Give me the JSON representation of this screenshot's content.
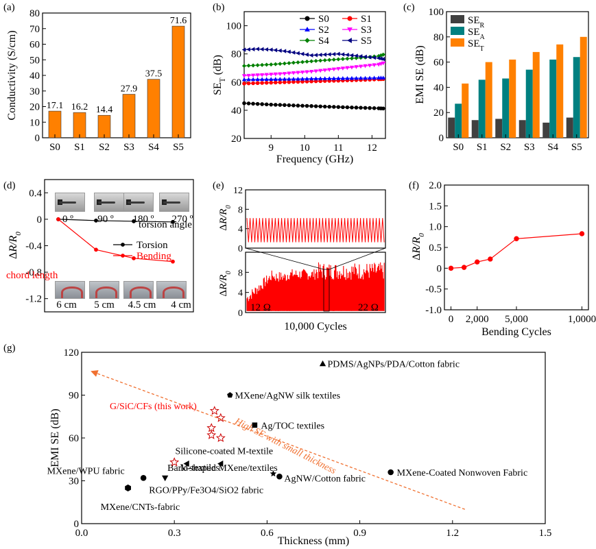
{
  "chart_data": [
    {
      "panel": "(a)",
      "type": "bar",
      "categories": [
        "S0",
        "S1",
        "S2",
        "S3",
        "S4",
        "S5"
      ],
      "values": [
        17.1,
        16.2,
        14.4,
        27.9,
        37.5,
        71.6
      ],
      "value_labels": [
        "17.1",
        "16.2",
        "14.4",
        "27.9",
        "37.5",
        "71.6"
      ],
      "ylabel": "Conductivity (S/cm)",
      "ylim": [
        0,
        80
      ],
      "yticks": [
        "0",
        "10",
        "20",
        "30",
        "40",
        "50",
        "60",
        "70",
        "80"
      ],
      "color": "#ff8000"
    },
    {
      "panel": "(b)",
      "type": "line",
      "xlabel": "Frequency (GHz)",
      "ylabel_main": "SE",
      "ylabel_sub": "T",
      "ylabel_unit": " (dB)",
      "xlim": [
        8.2,
        12.4
      ],
      "ylim": [
        20,
        110
      ],
      "xticks": [
        "9",
        "10",
        "11",
        "12"
      ],
      "yticks": [
        "20",
        "40",
        "60",
        "80",
        "100"
      ],
      "x": [
        8.2,
        8.6,
        9.0,
        9.4,
        9.8,
        10.2,
        10.6,
        11.0,
        11.4,
        11.8,
        12.2,
        12.4
      ],
      "series": [
        {
          "name": "S0",
          "color": "#000000",
          "marker": "circle",
          "values": [
            45,
            44.5,
            44,
            43.7,
            43.3,
            43,
            42.6,
            42.3,
            42,
            41.7,
            41.4,
            41.2
          ]
        },
        {
          "name": "S1",
          "color": "#ff0000",
          "marker": "circle",
          "values": [
            59,
            59.3,
            59.6,
            59.9,
            60.2,
            60.5,
            60.8,
            61,
            61.3,
            61.6,
            62,
            62.2
          ]
        },
        {
          "name": "S2",
          "color": "#0000ff",
          "marker": "triangle",
          "values": [
            61.8,
            61.9,
            62,
            62.1,
            62.2,
            62.4,
            62.5,
            62.6,
            62.7,
            62.8,
            63,
            63
          ]
        },
        {
          "name": "S3",
          "color": "#ff00ff",
          "marker": "triangle-down",
          "values": [
            64.5,
            65,
            65.5,
            66,
            66.8,
            67.5,
            68.5,
            69.5,
            70.5,
            71.5,
            72.5,
            74
          ]
        },
        {
          "name": "S4",
          "color": "#008000",
          "marker": "diamond",
          "values": [
            71.5,
            72,
            72.5,
            73.2,
            74,
            74.8,
            75.5,
            76.2,
            76.8,
            77.5,
            78.5,
            80
          ]
        },
        {
          "name": "S5",
          "color": "#000080",
          "marker": "left-triangle",
          "values": [
            83,
            83.5,
            83,
            82,
            80.5,
            79,
            79.5,
            80,
            79,
            78,
            77,
            76
          ]
        }
      ]
    },
    {
      "panel": "(c)",
      "type": "bar",
      "categories": [
        "S0",
        "S1",
        "S2",
        "S3",
        "S4",
        "S5"
      ],
      "ylabel": "EMI SE (dB)",
      "ylim": [
        0,
        100
      ],
      "yticks": [
        "0",
        "20",
        "40",
        "60",
        "80",
        "100"
      ],
      "series": [
        {
          "name": "SE",
          "sub": "R",
          "color": "#404040",
          "values": [
            16,
            14,
            15,
            14,
            12,
            16
          ]
        },
        {
          "name": "SE",
          "sub": "A",
          "color": "#008080",
          "values": [
            27,
            46,
            47,
            54,
            62,
            64
          ]
        },
        {
          "name": "SE",
          "sub": "T",
          "color": "#ff8000",
          "values": [
            43,
            60,
            62,
            68,
            74,
            80
          ]
        }
      ]
    },
    {
      "panel": "(d)",
      "type": "line",
      "ylabel": "ΔR/R",
      "ylabel_sub": "0",
      "ylim": [
        -1.4,
        0.6
      ],
      "yticks": [
        "0.4",
        "0",
        "-0.4",
        "-0.8",
        "-1.2"
      ],
      "ytick_values": [
        0.4,
        0,
        -0.4,
        -0.8,
        -1.2
      ],
      "top_labels": [
        "0 º",
        "90 º",
        "180 º",
        "270 º"
      ],
      "top_caption": "torsion angle",
      "bottom_labels": [
        "6 cm",
        "5 cm",
        "4.5 cm",
        "4 cm"
      ],
      "bottom_caption": "chord length",
      "series": [
        {
          "name": "Torsion",
          "color": "#000000",
          "values": [
            0,
            -0.02,
            -0.03,
            -0.04
          ]
        },
        {
          "name": "Bending",
          "color": "#ff0000",
          "values": [
            0,
            -0.46,
            -0.59,
            -0.64
          ]
        }
      ]
    },
    {
      "panel": "(e)",
      "type": "line",
      "xlabel": "10,000 Cycles",
      "ylabel": "ΔR/R",
      "ylabel_sub": "0",
      "top_ylim": [
        0,
        12
      ],
      "top_yticks": [
        "0",
        "4",
        "8",
        "12"
      ],
      "bottom_ylim": [
        0,
        12
      ],
      "bottom_yticks": [
        "0",
        "4",
        "8"
      ],
      "start_label": "12 Ω",
      "end_label": "22 Ω",
      "color": "#ff0000"
    },
    {
      "panel": "(f)",
      "type": "line",
      "xlabel": "Bending Cycles",
      "ylabel": "ΔR/R",
      "ylabel_sub": "0",
      "xlim": [
        -500,
        10500
      ],
      "ylim": [
        -1.0,
        2.0
      ],
      "xticks": [
        "0",
        "2,000",
        "5,000",
        "1,0000"
      ],
      "xtick_values": [
        0,
        2000,
        5000,
        10000
      ],
      "yticks": [
        "-1.0",
        "-0.5",
        "0",
        "0.5",
        "1.0",
        "1.5",
        "2.0"
      ],
      "ytick_values": [
        -1.0,
        -0.5,
        0,
        0.5,
        1.0,
        1.5,
        2.0
      ],
      "x": [
        0,
        1000,
        2000,
        3000,
        5000,
        10000
      ],
      "values": [
        0,
        0.02,
        0.15,
        0.22,
        0.71,
        0.83
      ],
      "color": "#ff0000"
    },
    {
      "panel": "(g)",
      "type": "scatter",
      "xlabel": "Thickness (mm)",
      "ylabel": "EMI SE (dB)",
      "xlim": [
        0,
        1.5
      ],
      "ylim": [
        0,
        120
      ],
      "xticks": [
        "0.0",
        "0.3",
        "0.6",
        "0.9",
        "1.2",
        "1.5"
      ],
      "xtick_values": [
        0,
        0.3,
        0.6,
        0.9,
        1.2,
        1.5
      ],
      "yticks": [
        "0",
        "30",
        "60",
        "90",
        "120"
      ],
      "ytick_values": [
        0,
        30,
        60,
        90,
        120
      ],
      "this_work_label": "G/SiC/CFs (this work)",
      "this_work_points": [
        [
          0.3,
          43
        ],
        [
          0.43,
          79
        ],
        [
          0.45,
          74
        ],
        [
          0.42,
          67
        ],
        [
          0.42,
          62
        ],
        [
          0.45,
          60
        ]
      ],
      "trend_label": "High SE with small thickness",
      "trend_line": [
        [
          0.04,
          106
        ],
        [
          1.24,
          10
        ]
      ],
      "points": [
        {
          "label": "PDMS/AgNPs/PDA/Cotton fabric",
          "x": 0.78,
          "y": 112,
          "marker": "triangle"
        },
        {
          "label": "MXene/AgNW silk textiles",
          "x": 0.48,
          "y": 90,
          "marker": "pentagon"
        },
        {
          "label": "Ag/TOC textiles",
          "x": 0.56,
          "y": 69,
          "marker": "square"
        },
        {
          "label": "Silicone-coated M-textile",
          "x": 0.45,
          "y": 42,
          "marker": "left-triangle"
        },
        {
          "label": "M-textiles",
          "x": 0.34,
          "y": 42,
          "marker": "left-triangle"
        },
        {
          "label": "MXene/WPU fabric",
          "x": 0.2,
          "y": 32,
          "marker": "circle"
        },
        {
          "label": "RGO/PPy/Fe3O4/SiO2 fabric",
          "x": 0.27,
          "y": 32,
          "marker": "triangle-down"
        },
        {
          "label": "MXene/CNTs-fabric",
          "x": 0.15,
          "y": 25,
          "marker": "hexagon"
        },
        {
          "label": "Bark-shaped MXene/textiles",
          "x": 0.62,
          "y": 35,
          "marker": "star"
        },
        {
          "label": "AgNW/Cotton fabric",
          "x": 0.64,
          "y": 33,
          "marker": "circle"
        },
        {
          "label": "MXene-Coated Nonwoven Fabric",
          "x": 1.0,
          "y": 36,
          "marker": "circle"
        }
      ]
    }
  ]
}
